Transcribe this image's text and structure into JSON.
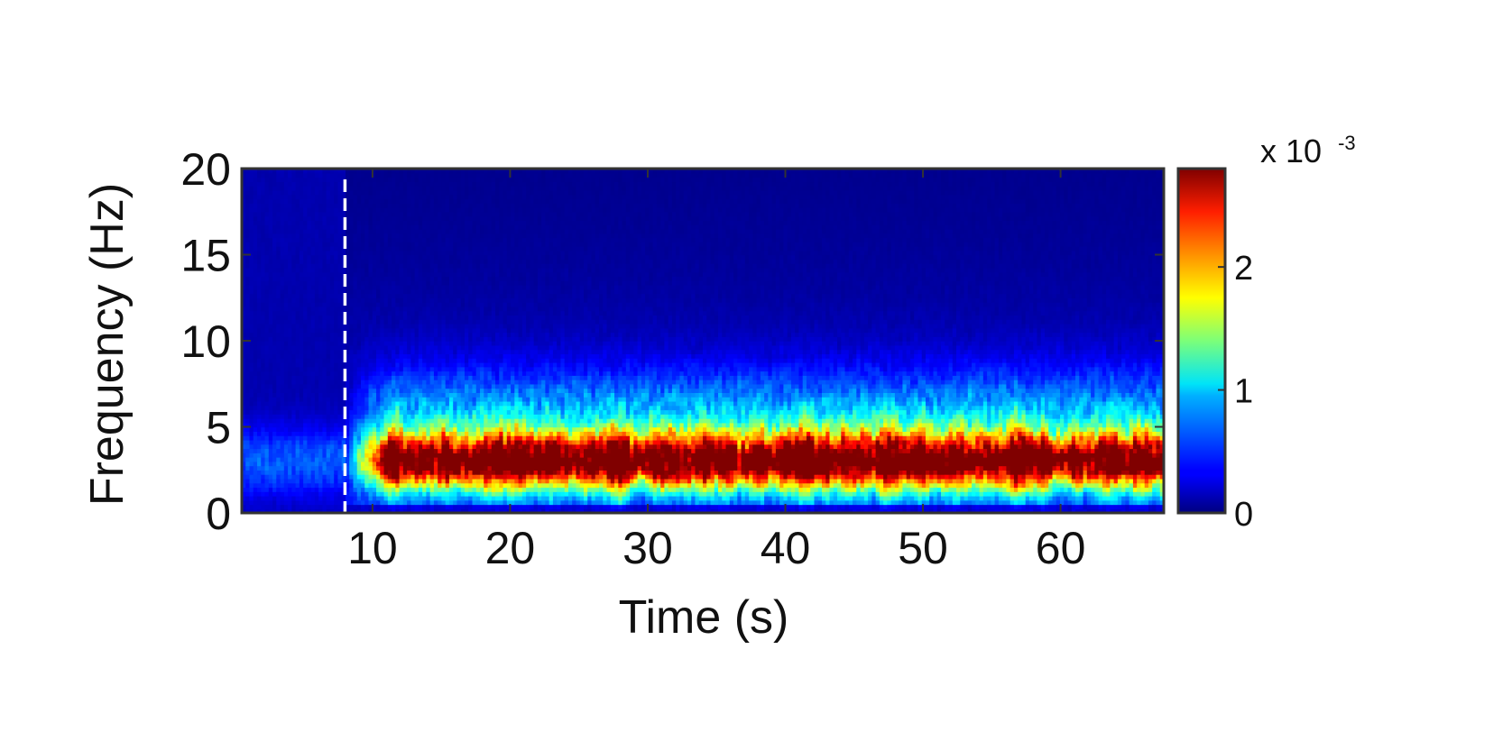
{
  "chart_data": {
    "type": "heatmap",
    "title": "",
    "xlabel": "Time (s)",
    "ylabel": "Frequency (Hz)",
    "xlim": [
      0.5,
      67.5
    ],
    "ylim": [
      0,
      20
    ],
    "x_ticks": [
      10,
      20,
      30,
      40,
      50,
      60
    ],
    "y_ticks": [
      0,
      5,
      10,
      15,
      20
    ],
    "x_tick_labels": [
      "10",
      "20",
      "30",
      "40",
      "50",
      "60"
    ],
    "y_tick_labels": [
      "0",
      "5",
      "10",
      "15",
      "20"
    ],
    "colorscale": "jet",
    "colorbar": {
      "range": [
        0,
        2.8
      ],
      "ticks": [
        0,
        1,
        2
      ],
      "tick_labels": [
        "0",
        "1",
        "2"
      ],
      "exponent_label": "x 10",
      "exponent": "-3"
    },
    "annotations": [
      {
        "type": "vertical-dashed-line",
        "x": 8,
        "color": "#ffffff"
      }
    ],
    "band": {
      "peak_frequency_hz": 3,
      "onset_time_s": 8,
      "peak_value": 2.7
    },
    "legend": "none",
    "grid": false
  }
}
